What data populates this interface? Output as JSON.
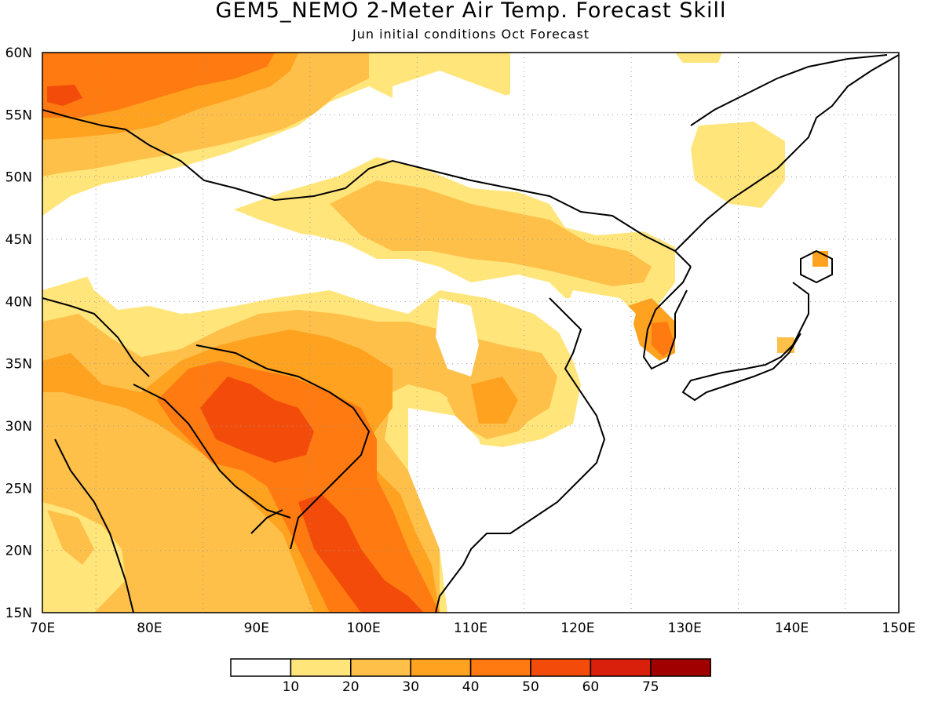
{
  "title": "GEM5_NEMO 2-Meter Air Temp. Forecast Skill",
  "subtitle": "Jun initial conditions  Oct Forecast",
  "map": {
    "lon_labels": [
      "70E",
      "80E",
      "90E",
      "100E",
      "110E",
      "120E",
      "130E",
      "140E",
      "150E"
    ],
    "lat_labels": [
      "60N",
      "55N",
      "50N",
      "45N",
      "40N",
      "35N",
      "30N",
      "25N",
      "20N",
      "15N"
    ],
    "lon_range": [
      70,
      150
    ],
    "lat_range": [
      15,
      60
    ],
    "grid": true
  },
  "colorbar": {
    "labels": [
      "10",
      "20",
      "30",
      "40",
      "50",
      "60",
      "75"
    ],
    "colors": [
      "#ffffff",
      "#ffe57a",
      "#ffc04a",
      "#ffa21f",
      "#ff7a10",
      "#f24b0a",
      "#d8200a",
      "#a00000"
    ]
  }
}
